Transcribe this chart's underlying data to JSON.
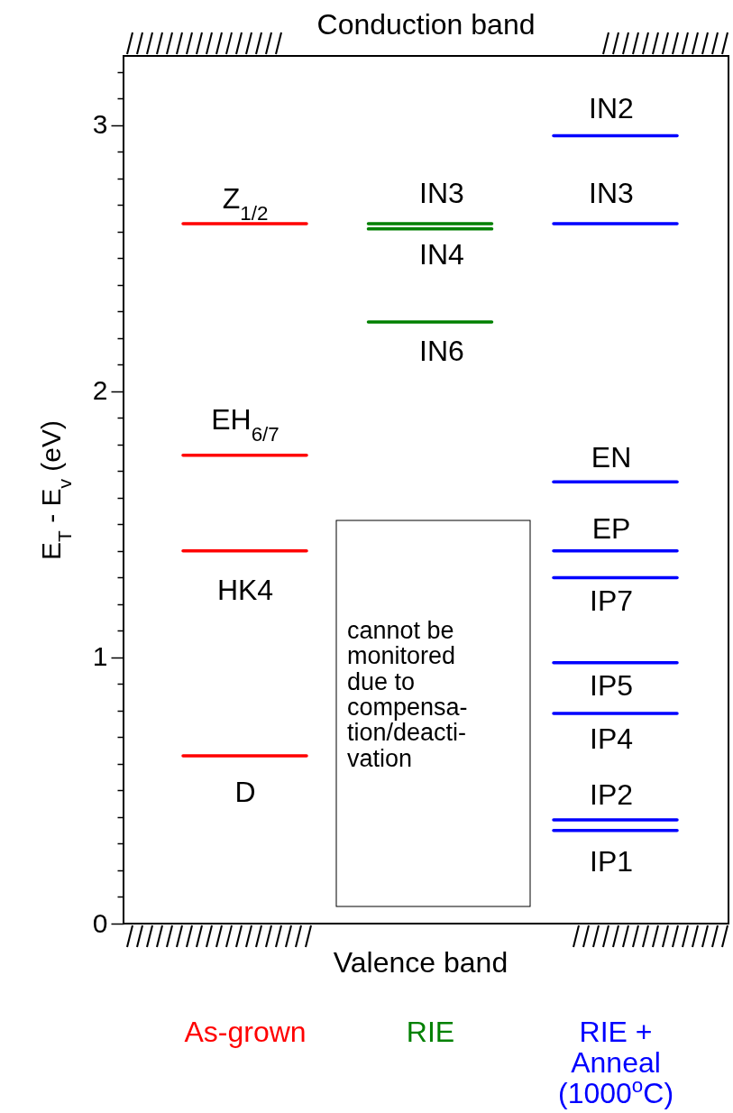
{
  "chart_data": {
    "type": "line",
    "ylabel": "E$_{T}$ - E$_{v}$ (eV)",
    "categories": [
      null,
      "As-grown",
      null,
      null,
      "RIE",
      null,
      null,
      "RIE +\nAnneal\n(1000$^{o}$C)",
      null
    ],
    "ylim": [
      0,
      3.26
    ],
    "yticks": [
      0,
      {
        "value": 0.1,
        "label": null
      },
      {
        "value": 0.2,
        "label": null
      },
      {
        "value": 0.3,
        "label": null
      },
      {
        "value": 0.4,
        "label": null
      },
      {
        "value": 0.5,
        "label": null
      },
      {
        "value": 0.6,
        "label": null
      },
      {
        "value": 0.7,
        "label": null
      },
      {
        "value": 0.8,
        "label": null
      },
      {
        "value": 0.9,
        "label": null
      },
      1,
      {
        "value": 1.1,
        "label": null
      },
      {
        "value": 1.2,
        "label": null
      },
      {
        "value": 1.3,
        "label": null
      },
      {
        "value": 1.4,
        "label": null
      },
      {
        "value": 1.5,
        "label": null
      },
      {
        "value": 1.6,
        "label": null
      },
      {
        "value": 1.7,
        "label": null
      },
      {
        "value": 1.8,
        "label": null
      },
      {
        "value": 1.9,
        "label": null
      },
      2,
      {
        "value": 2.1,
        "label": null
      },
      {
        "value": 2.2,
        "label": null
      },
      {
        "value": 2.3,
        "label": null
      },
      {
        "value": 2.4,
        "label": null
      },
      {
        "value": 2.5,
        "label": null
      },
      {
        "value": 2.6,
        "label": null
      },
      {
        "value": 2.7,
        "label": null
      },
      {
        "value": 2.8,
        "label": null
      },
      {
        "value": 2.9,
        "label": null
      },
      3,
      {
        "value": 3.1,
        "label": null
      },
      {
        "value": 3.2,
        "label": null
      }
    ],
    "series": [
      {
        "color": "#ff0000",
        "values": [
          2.63,
          2.63,
          2.63,
          null,
          null,
          null,
          null,
          null,
          null
        ]
      },
      {
        "color": "#ff0000",
        "values": [
          1.76,
          1.76,
          1.76,
          null,
          null,
          null,
          null,
          null,
          null
        ]
      },
      {
        "color": "#ff0000",
        "values": [
          1.4,
          1.4,
          1.4,
          null,
          null,
          null,
          null,
          null,
          null
        ]
      },
      {
        "color": "#ff0000",
        "values": [
          0.63,
          0.63,
          0.63,
          null,
          null,
          null,
          null,
          null,
          null
        ]
      },
      {
        "color": "#008000",
        "values": [
          null,
          null,
          null,
          2.63,
          2.63,
          2.63,
          null,
          null,
          null
        ]
      },
      {
        "color": "#008000",
        "values": [
          null,
          null,
          null,
          2.61,
          2.61,
          2.61,
          null,
          null,
          null
        ]
      },
      {
        "color": "#008000",
        "values": [
          null,
          null,
          null,
          2.26,
          2.26,
          2.26,
          null,
          null,
          null
        ]
      },
      {
        "color": "#0000ff",
        "values": [
          null,
          null,
          null,
          null,
          null,
          null,
          2.96,
          2.96,
          2.96
        ]
      },
      {
        "color": "#0000ff",
        "values": [
          null,
          null,
          null,
          null,
          null,
          null,
          2.63,
          2.63,
          2.63
        ]
      },
      {
        "color": "#0000ff",
        "values": [
          null,
          null,
          null,
          null,
          null,
          null,
          1.66,
          1.66,
          1.66
        ]
      },
      {
        "color": "#0000ff",
        "values": [
          null,
          null,
          null,
          null,
          null,
          null,
          1.4,
          1.4,
          1.4
        ]
      },
      {
        "color": "#0000ff",
        "values": [
          null,
          null,
          null,
          null,
          null,
          null,
          1.3,
          1.3,
          1.3
        ]
      },
      {
        "color": "#0000ff",
        "values": [
          null,
          null,
          null,
          null,
          null,
          null,
          0.98,
          0.98,
          0.98
        ]
      },
      {
        "color": "#0000ff",
        "values": [
          null,
          null,
          null,
          null,
          null,
          null,
          0.79,
          0.79,
          0.79
        ]
      },
      {
        "color": "#0000ff",
        "values": [
          null,
          null,
          null,
          null,
          null,
          null,
          0.39,
          0.39,
          0.39
        ]
      },
      {
        "color": "#0000ff",
        "values": [
          null,
          null,
          null,
          null,
          null,
          null,
          0.35,
          0.35,
          0.35
        ]
      }
    ],
    "annotations": [
      "Conduction band",
      "Valence band",
      "cannot be\nmonitored\ndue to\ncompensa-\ntion/deacti-\nvation",
      "Z$_{1/2}$",
      "EH$_{6/7}$",
      "HK4",
      "D",
      "IN3",
      "IN4",
      "IN6",
      "IN2",
      "IN3",
      "EN",
      "EP",
      "IP7",
      "IP5",
      "IP4",
      "IP2",
      "IP1"
    ]
  }
}
